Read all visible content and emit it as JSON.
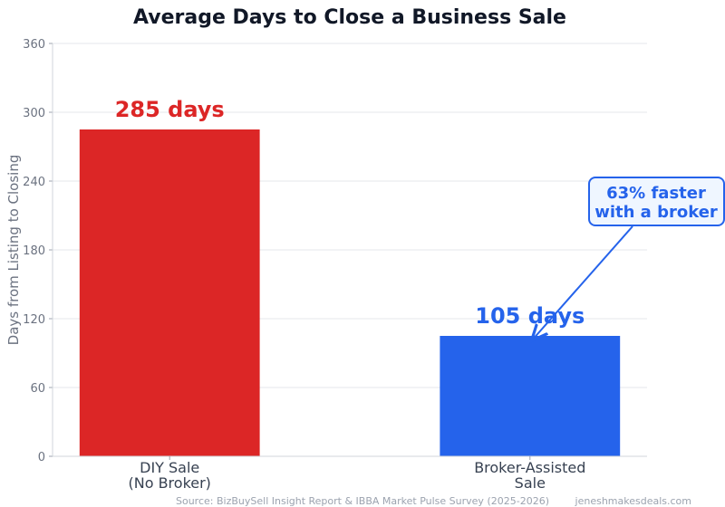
{
  "chart_data": {
    "type": "bar",
    "title": "Average Days to Close a Business Sale",
    "xlabel": "",
    "ylabel": "Days from Listing to Closing",
    "categories": [
      "DIY Sale\n(No Broker)",
      "Broker-Assisted\nSale"
    ],
    "values": [
      285,
      105
    ],
    "data_labels": [
      "285 days",
      "105 days"
    ],
    "colors": [
      "#dc2626",
      "#2563eb"
    ],
    "ylim": [
      0,
      360
    ],
    "yticks": [
      0,
      60,
      120,
      180,
      240,
      300,
      360
    ],
    "grid": true,
    "annotation": {
      "text": "63% faster\nwith a broker",
      "target_category": "Broker-Assisted\nSale",
      "target_value": 105,
      "color": "#2563eb",
      "background": "#eff6ff"
    },
    "source": "Source: BizBuySell Insight Report & IBBA Market Pulse Survey (2025-2026)",
    "watermark": "jeneshmakesdeals.com"
  }
}
